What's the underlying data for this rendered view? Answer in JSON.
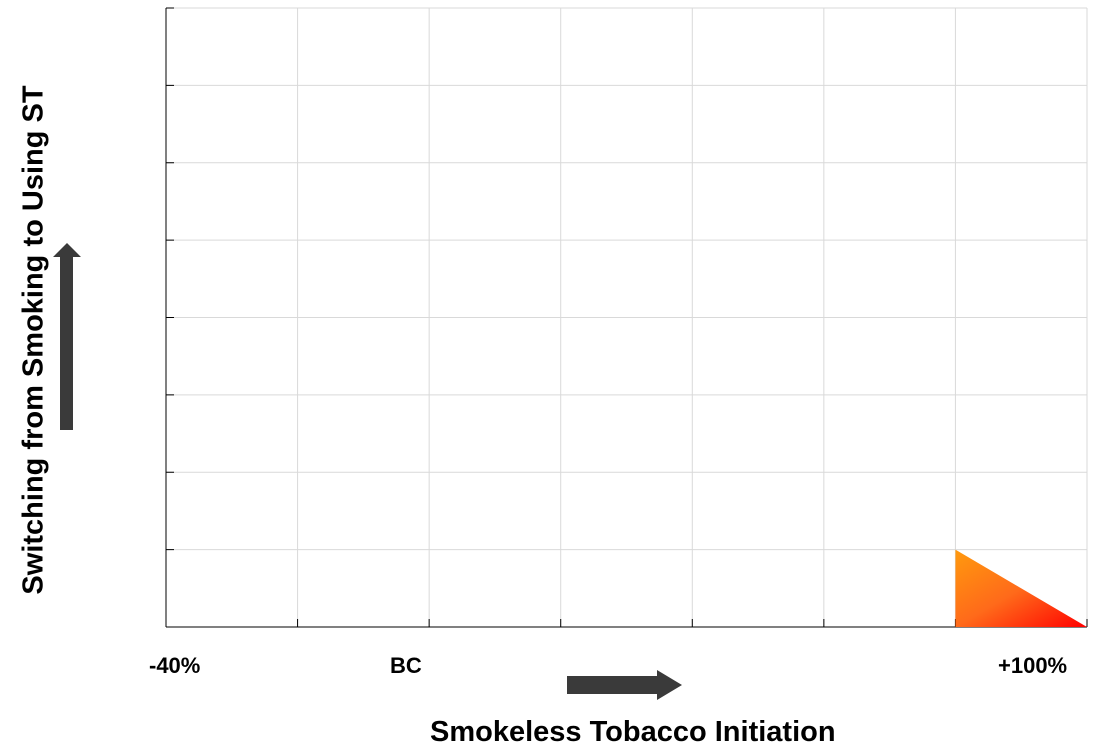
{
  "chart_data": {
    "type": "area",
    "title": "",
    "xlabel": "Smokeless Tobacco  Initiation",
    "ylabel": "Switching from Smoking to Using ST",
    "x_tick_labels": [
      "-40%",
      "BC",
      "+100%"
    ],
    "x_tick_values": [
      -40,
      0,
      100
    ],
    "xlim": [
      -40,
      100
    ],
    "ylim": [
      0,
      8
    ],
    "grid": true,
    "x_gridlines": 7,
    "y_gridlines": 8,
    "region": {
      "polygon": [
        [
          80,
          0
        ],
        [
          80,
          1
        ],
        [
          100,
          0
        ]
      ],
      "gradient": [
        "#ff9a0e",
        "#ff6a1a",
        "#ff0000"
      ]
    },
    "arrows": [
      "x-axis-arrow-right",
      "y-axis-arrow-up"
    ],
    "colors": {
      "arrow": "#3a3a3a",
      "grid": "#d9d9d9",
      "axis": "#000000"
    }
  }
}
